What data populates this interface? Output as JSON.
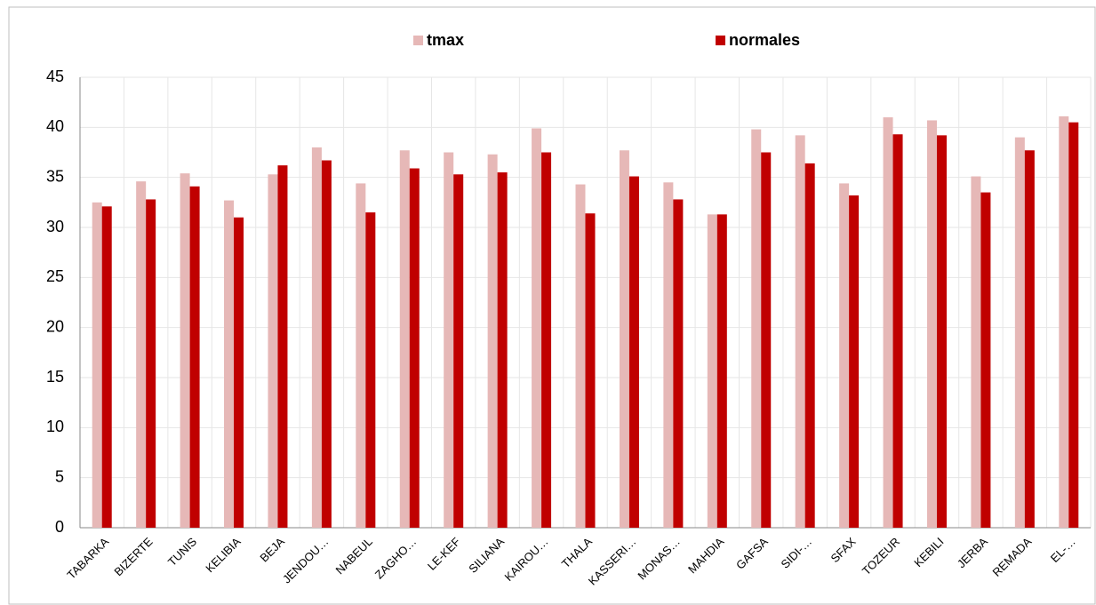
{
  "chart_data": {
    "type": "bar",
    "categories": [
      "TABARKA",
      "BIZERTE",
      "TUNIS",
      "KELIBIA",
      "BEJA",
      "JENDOU…",
      "NABEUL",
      "ZAGHO…",
      "LE-KEF",
      "SILIANA",
      "KAIROU…",
      "THALA",
      "KASSERI…",
      "MONAS…",
      "MAHDIA",
      "GAFSA",
      "SIDI-…",
      "SFAX",
      "TOZEUR",
      "KEBILI",
      "JERBA",
      "REMADA",
      "EL-…"
    ],
    "series": [
      {
        "name": "tmax",
        "color": "#e6b8b7",
        "values": [
          32.5,
          34.6,
          35.4,
          32.7,
          35.3,
          38.0,
          34.4,
          37.7,
          37.5,
          37.3,
          39.9,
          34.3,
          37.7,
          34.5,
          31.3,
          39.8,
          39.2,
          34.4,
          41.0,
          40.7,
          35.1,
          39.0,
          41.1
        ]
      },
      {
        "name": "normales",
        "color": "#c00000",
        "values": [
          32.1,
          32.8,
          34.1,
          31.0,
          36.2,
          36.7,
          31.5,
          35.9,
          35.3,
          35.5,
          37.5,
          31.4,
          35.1,
          32.8,
          31.3,
          37.5,
          36.4,
          33.2,
          39.3,
          39.2,
          33.5,
          37.7,
          40.5
        ]
      }
    ],
    "ylim": [
      0,
      45
    ],
    "yticks": [
      0,
      5,
      10,
      15,
      20,
      25,
      30,
      35,
      40,
      45
    ],
    "grid": true,
    "legend": "top"
  }
}
